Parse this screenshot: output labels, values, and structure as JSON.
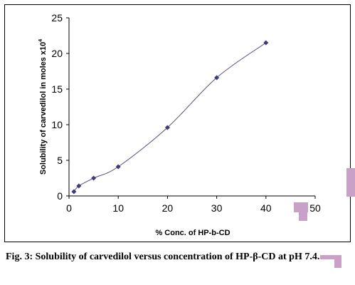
{
  "chart_data": {
    "type": "line",
    "x": [
      1,
      2,
      5,
      10,
      20,
      30,
      40
    ],
    "y": [
      0.6,
      1.4,
      2.5,
      4.1,
      9.6,
      16.6,
      21.5
    ],
    "xlim": [
      0,
      50
    ],
    "ylim": [
      0,
      25
    ],
    "xticks": [
      "0",
      "10",
      "20",
      "30",
      "40",
      "50"
    ],
    "yticks": [
      "0",
      "5",
      "10",
      "15",
      "20",
      "25"
    ],
    "xlabel": "% Conc. of HP-b-CD",
    "ylabel": "Solubility of carvedilol in moles x10",
    "ylabel_exp": "4",
    "grid": false,
    "line_color": "#5a4a78",
    "marker_color": "#3c3c7a"
  },
  "caption": "Fig. 3: Solubility of carvedilol versus concentration of HP-β-CD at pH 7.4."
}
